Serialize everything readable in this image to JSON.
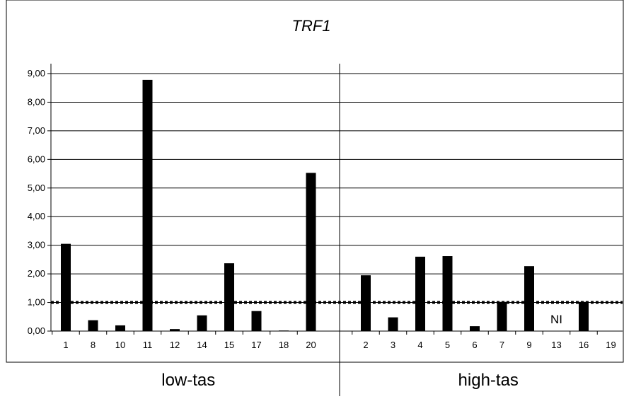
{
  "chart_data": {
    "type": "bar",
    "title": "TRF1",
    "xlabel": "",
    "ylabel": "",
    "ylim": [
      0,
      9
    ],
    "yticks": [
      "0,00",
      "1,00",
      "2,00",
      "3,00",
      "4,00",
      "5,00",
      "6,00",
      "7,00",
      "8,00",
      "9,00"
    ],
    "grid": true,
    "legend": "none",
    "bar_color": "#000000",
    "reference_line": {
      "value": 1.0,
      "style": "dotted"
    },
    "groups": [
      {
        "name": "low-tas",
        "categories": [
          "1",
          "8",
          "10",
          "11",
          "12",
          "14",
          "15",
          "17",
          "18",
          "20"
        ],
        "values": [
          3.05,
          0.38,
          0.2,
          8.78,
          0.07,
          0.55,
          2.37,
          0.7,
          0.02,
          5.53
        ]
      },
      {
        "name": "high-tas",
        "categories": [
          "2",
          "3",
          "4",
          "5",
          "6",
          "7",
          "9",
          "13",
          "16",
          "19"
        ],
        "values": [
          1.95,
          0.48,
          2.6,
          2.62,
          0.17,
          1.02,
          2.27,
          null,
          1.02,
          null
        ]
      }
    ],
    "annotations": [
      {
        "text": "NI",
        "group": "high-tas",
        "category": "13"
      }
    ]
  }
}
